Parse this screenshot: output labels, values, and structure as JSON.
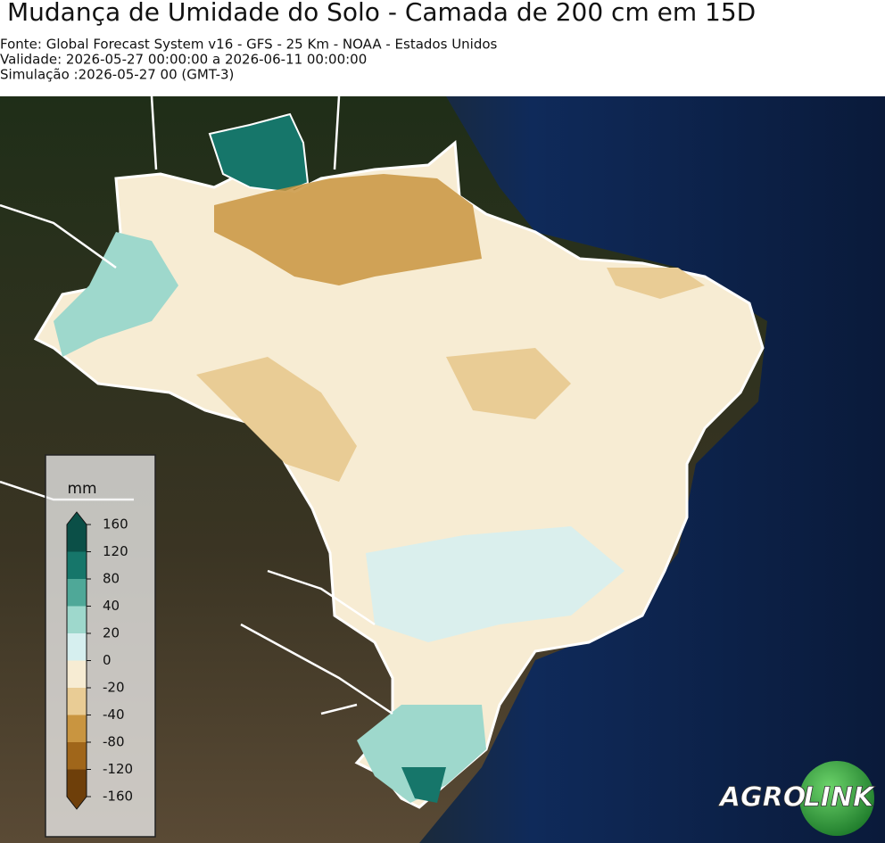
{
  "header": {
    "title": "Mudança de Umidade do Solo - Camada de 200 cm em 15D",
    "source": "Fonte: Global Forecast System v16 - GFS - 25 Km - NOAA - Estados Unidos",
    "validity": "Validade: 2026-05-27 00:00:00 a 2026-06-11 00:00:00",
    "simulation": "Simulação :2026-05-27 00 (GMT-3)"
  },
  "legend": {
    "unit": "mm",
    "ticks": [
      160,
      120,
      80,
      40,
      20,
      0,
      -20,
      -40,
      -80,
      -120,
      -160
    ],
    "colors": [
      "#0b4f47",
      "#16766a",
      "#4fa898",
      "#9ed8cc",
      "#d6efef",
      "#f7ecd3",
      "#e9cc95",
      "#c99540",
      "#a0661a",
      "#6e3f0a"
    ]
  },
  "logo": {
    "left": "AGRO",
    "right": "LINK"
  }
}
